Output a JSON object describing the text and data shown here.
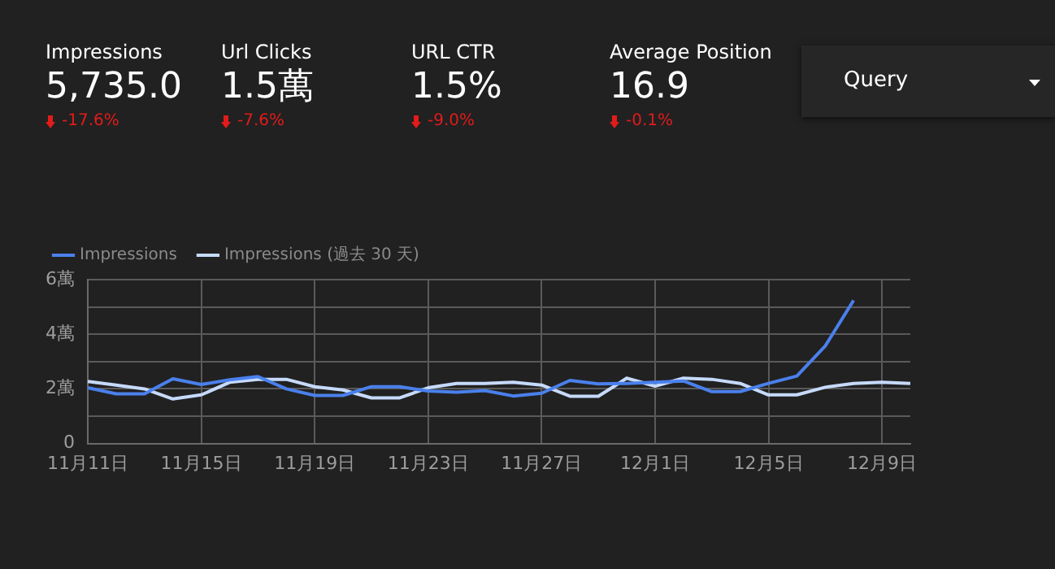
{
  "chart_data": [
    {
      "type": "other",
      "annotations": [
        "Impressions",
        "5,735.0",
        "-17.6%",
        "Url Clicks",
        "1.5萬",
        "-7.6%",
        "URL CTR",
        "1.5%",
        "-9.0%",
        "Average Position",
        "16.9",
        "-0.1%",
        "Query"
      ]
    },
    {
      "type": "line",
      "categories": [
        "11月11日",
        null,
        null,
        null,
        "11月15日",
        null,
        null,
        null,
        "11月19日",
        null,
        null,
        null,
        "11月23日",
        null,
        null,
        null,
        "11月27日",
        null,
        null,
        null,
        "12月1日",
        null,
        null,
        null,
        "12月5日",
        null,
        null,
        null,
        "12月9日",
        null
      ],
      "series": [
        {
          "name": "Impressions",
          "color": "#4a80ec",
          "values": [
            2.04,
            1.82,
            1.82,
            2.37,
            2.16,
            2.33,
            2.45,
            2.0,
            1.76,
            1.76,
            2.08,
            2.08,
            1.92,
            1.88,
            1.94,
            1.74,
            1.84,
            2.31,
            2.18,
            2.2,
            2.24,
            2.29,
            1.9,
            1.9,
            2.2,
            2.47,
            3.57,
            5.24,
            null,
            null
          ]
        },
        {
          "name": "Impressions (過去 30 天)",
          "color": "#c6dafc",
          "values": [
            2.27,
            2.14,
            2.0,
            1.63,
            1.78,
            2.24,
            2.35,
            2.35,
            2.08,
            1.96,
            1.67,
            1.67,
            2.04,
            2.2,
            2.2,
            2.24,
            2.14,
            1.73,
            1.73,
            2.39,
            2.1,
            2.39,
            2.35,
            2.2,
            1.78,
            1.78,
            2.06,
            2.2,
            2.24,
            2.2
          ]
        }
      ],
      "ylim": [
        0,
        6
      ],
      "yticks": [
        0,
        {
          "value": 1,
          "label": null
        },
        {
          "value": 2,
          "label": "2萬"
        },
        {
          "value": 3,
          "label": null
        },
        {
          "value": 4,
          "label": "4萬"
        },
        {
          "value": 5,
          "label": null
        },
        {
          "value": 6,
          "label": "6萬"
        }
      ],
      "grid": true,
      "legend": "top left",
      "marker": "none",
      "line_style": "solid"
    }
  ]
}
